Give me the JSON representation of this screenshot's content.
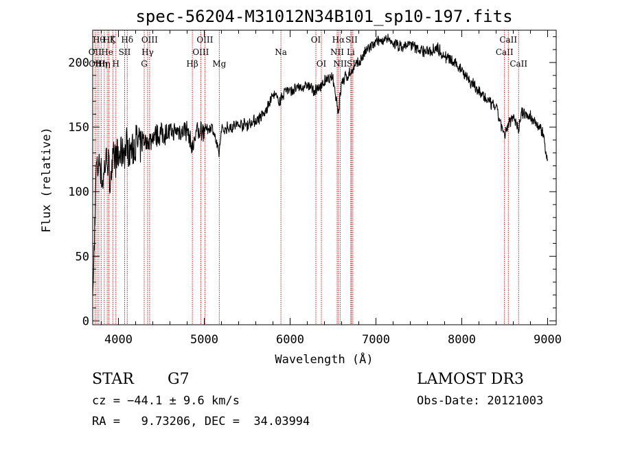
{
  "chart_data": {
    "type": "line",
    "title": "spec-56204-M31012N34B101_sp10-197.fits",
    "xlabel": "Wavelength (Å)",
    "ylabel": "Flux (relative)",
    "xlim": [
      3700,
      9100
    ],
    "ylim": [
      -3,
      225
    ],
    "xticks": [
      4000,
      5000,
      6000,
      7000,
      8000,
      9000
    ],
    "yticks": [
      0,
      50,
      100,
      150,
      200
    ],
    "grid": false,
    "series": [
      {
        "name": "spectrum",
        "x": [
          3700,
          3740,
          3780,
          3820,
          3860,
          3900,
          3950,
          4000,
          4050,
          4100,
          4150,
          4200,
          4260,
          4300,
          4350,
          4400,
          4500,
          4600,
          4700,
          4800,
          4861,
          4900,
          5000,
          5100,
          5170,
          5200,
          5300,
          5400,
          5500,
          5600,
          5700,
          5800,
          5890,
          5950,
          6000,
          6100,
          6200,
          6300,
          6400,
          6500,
          6563,
          6600,
          6700,
          6800,
          6900,
          7000,
          7100,
          7200,
          7300,
          7400,
          7500,
          7600,
          7700,
          7800,
          7900,
          8000,
          8100,
          8200,
          8300,
          8400,
          8498,
          8542,
          8600,
          8662,
          8700,
          8800,
          8900,
          8950,
          9000
        ],
        "y": [
          10,
          115,
          125,
          105,
          130,
          110,
          128,
          125,
          130,
          135,
          132,
          138,
          135,
          140,
          138,
          142,
          145,
          145,
          147,
          148,
          132,
          146,
          148,
          150,
          128,
          148,
          150,
          152,
          152,
          155,
          160,
          175,
          170,
          180,
          178,
          180,
          182,
          178,
          185,
          188,
          162,
          185,
          192,
          200,
          210,
          215,
          218,
          215,
          212,
          214,
          210,
          208,
          212,
          205,
          200,
          195,
          185,
          178,
          170,
          165,
          142,
          152,
          160,
          148,
          162,
          158,
          150,
          145,
          120
        ],
        "noise_seed": 7
      }
    ],
    "lines": [
      {
        "x": 3727,
        "label": "OII",
        "row": 2
      },
      {
        "x": 3750,
        "label": "OIII",
        "row": 3
      },
      {
        "x": 3771,
        "label": "Hθ",
        "row": 1
      },
      {
        "x": 3798,
        "label": "Hη",
        "row": 3
      },
      {
        "x": 3835,
        "label": "Hη",
        "row": 3
      },
      {
        "x": 3869,
        "label": "He",
        "row": 2
      },
      {
        "x": 3889,
        "label": "Hζ",
        "row": 1
      },
      {
        "x": 3934,
        "label": "K",
        "row": 1
      },
      {
        "x": 3970,
        "label": "H",
        "row": 3
      },
      {
        "x": 4072,
        "label": "SII",
        "row": 2
      },
      {
        "x": 4102,
        "label": "Hδ",
        "row": 1
      },
      {
        "x": 4300,
        "label": "G",
        "row": 3
      },
      {
        "x": 4340,
        "label": "Hγ",
        "row": 2
      },
      {
        "x": 4363,
        "label": "OIII",
        "row": 1
      },
      {
        "x": 4861,
        "label": "Hβ",
        "row": 3
      },
      {
        "x": 4959,
        "label": "OIII",
        "row": 2
      },
      {
        "x": 5007,
        "label": "OIII",
        "row": 1
      },
      {
        "x": 5175,
        "label": "Mg",
        "row": 3
      },
      {
        "x": 5893,
        "label": "Na",
        "row": 2
      },
      {
        "x": 6300,
        "label": "OI",
        "row": 1
      },
      {
        "x": 6364,
        "label": "OI",
        "row": 3
      },
      {
        "x": 6548,
        "label": "NII",
        "row": 2
      },
      {
        "x": 6563,
        "label": "Hα",
        "row": 1
      },
      {
        "x": 6583,
        "label": "NII",
        "row": 3
      },
      {
        "x": 6707,
        "label": "Li",
        "row": 2
      },
      {
        "x": 6716,
        "label": "SII",
        "row": 1
      },
      {
        "x": 6731,
        "label": "SII",
        "row": 3
      },
      {
        "x": 8498,
        "label": "CaII",
        "row": 2
      },
      {
        "x": 8542,
        "label": "CaII",
        "row": 1
      },
      {
        "x": 8662,
        "label": "CaII",
        "row": 3
      }
    ],
    "colors": {
      "spectrum": "#000000",
      "lines": "#c00000",
      "axes": "#000000"
    }
  },
  "info": {
    "object_type": "STAR",
    "subclass": "G7",
    "survey": "LAMOST DR3",
    "cz": "cz = −44.1 ± 9.6 km/s",
    "obs_date": "Obs-Date: 20121003",
    "coords": "RA =   9.73206, DEC =  34.03994"
  }
}
